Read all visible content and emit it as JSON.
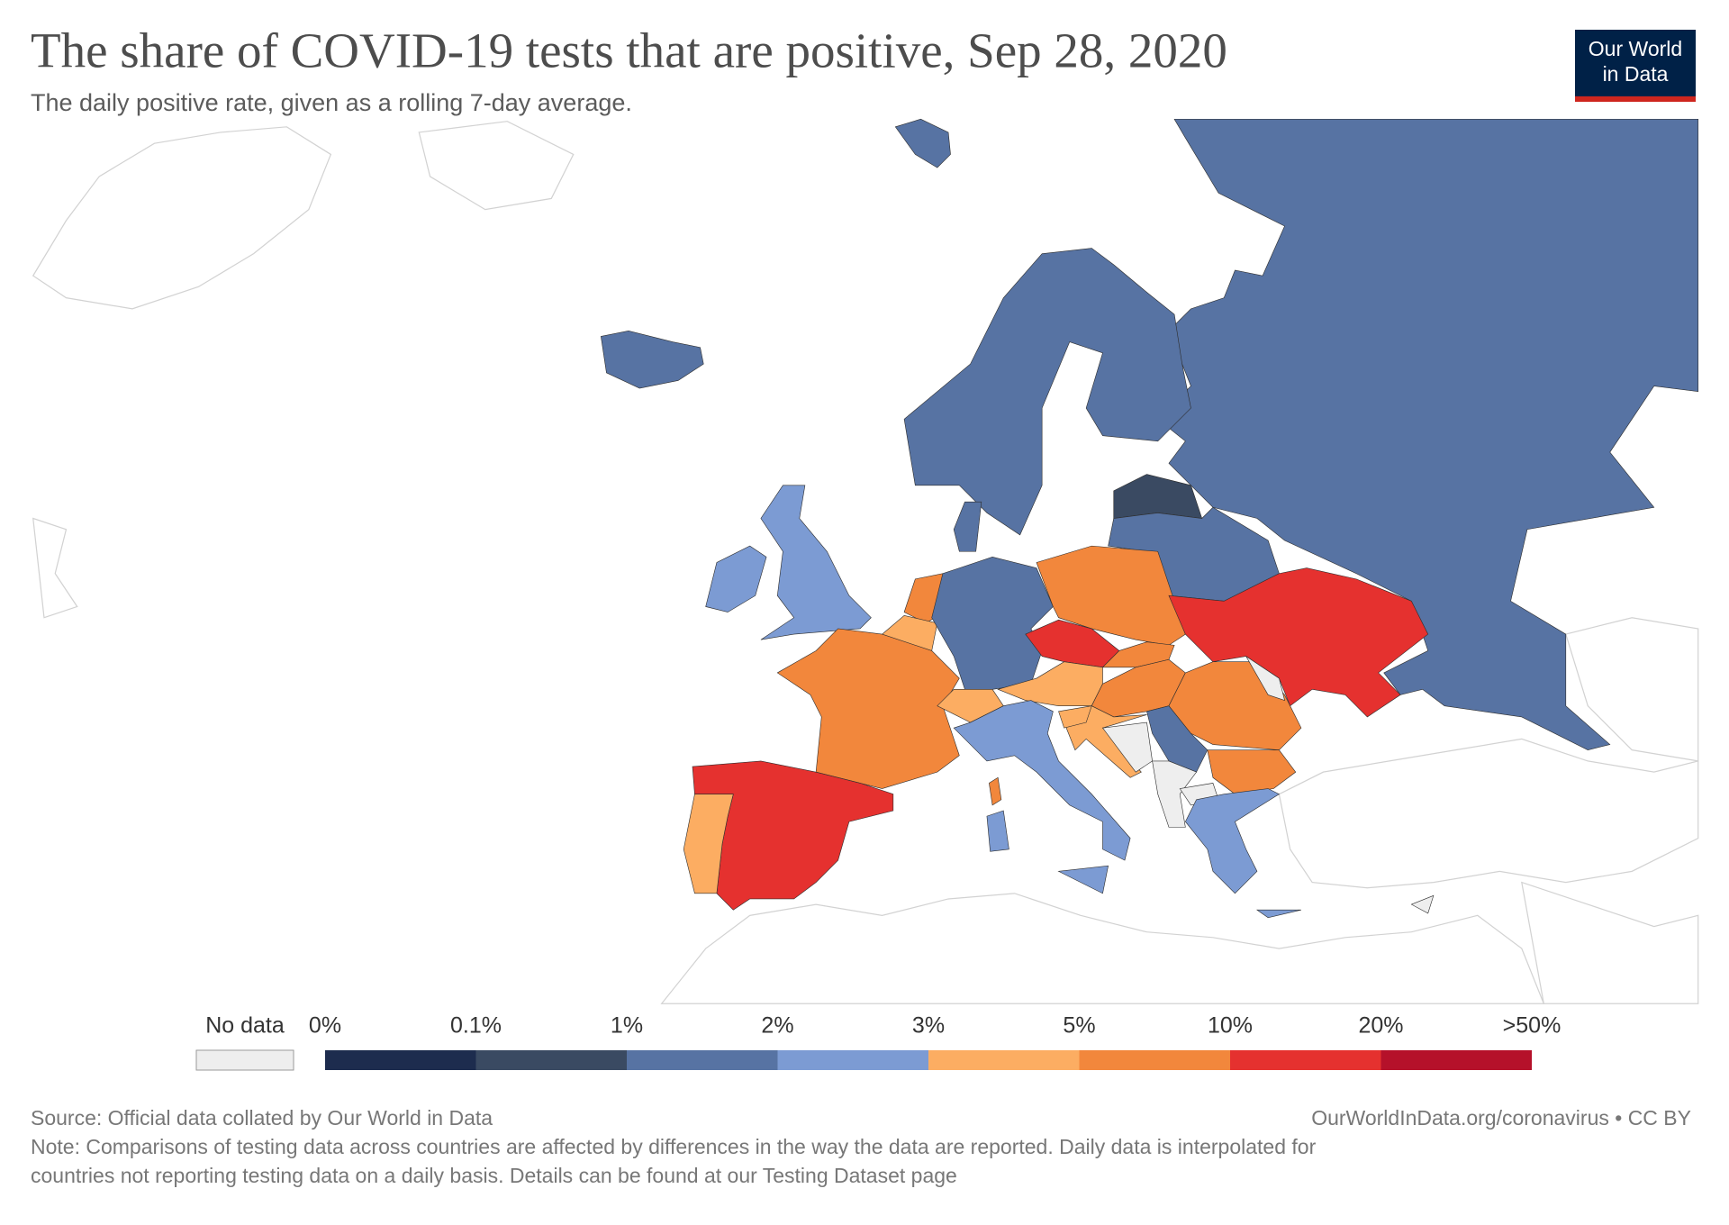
{
  "header": {
    "title": "The share of COVID-19 tests that are positive, Sep 28, 2020",
    "subtitle": "The daily positive rate, given as a rolling 7-day average.",
    "logo": [
      "Our World",
      "in Data"
    ]
  },
  "legend": {
    "no_data_label": "No data",
    "no_data_color": "#eeeeee",
    "labels": [
      "0%",
      "0.1%",
      "1%",
      "2%",
      "3%",
      "5%",
      "10%",
      "20%",
      ">50%"
    ],
    "colors": [
      "#1d2c4e",
      "#3a4a62",
      "#5773a3",
      "#7c9bd3",
      "#fcad62",
      "#f2873c",
      "#e5312f",
      "#b5112a"
    ]
  },
  "footer": {
    "source": "Source: Official data collated by Our World in Data",
    "url": "OurWorldInData.org/coronavirus • CC BY",
    "note": [
      "Note: Comparisons of testing data across countries are affected by differences in the way the data are reported. Daily data is interpolated for",
      "countries not reporting testing data on a daily basis. Details can be found at our Testing Dataset page"
    ]
  }
}
